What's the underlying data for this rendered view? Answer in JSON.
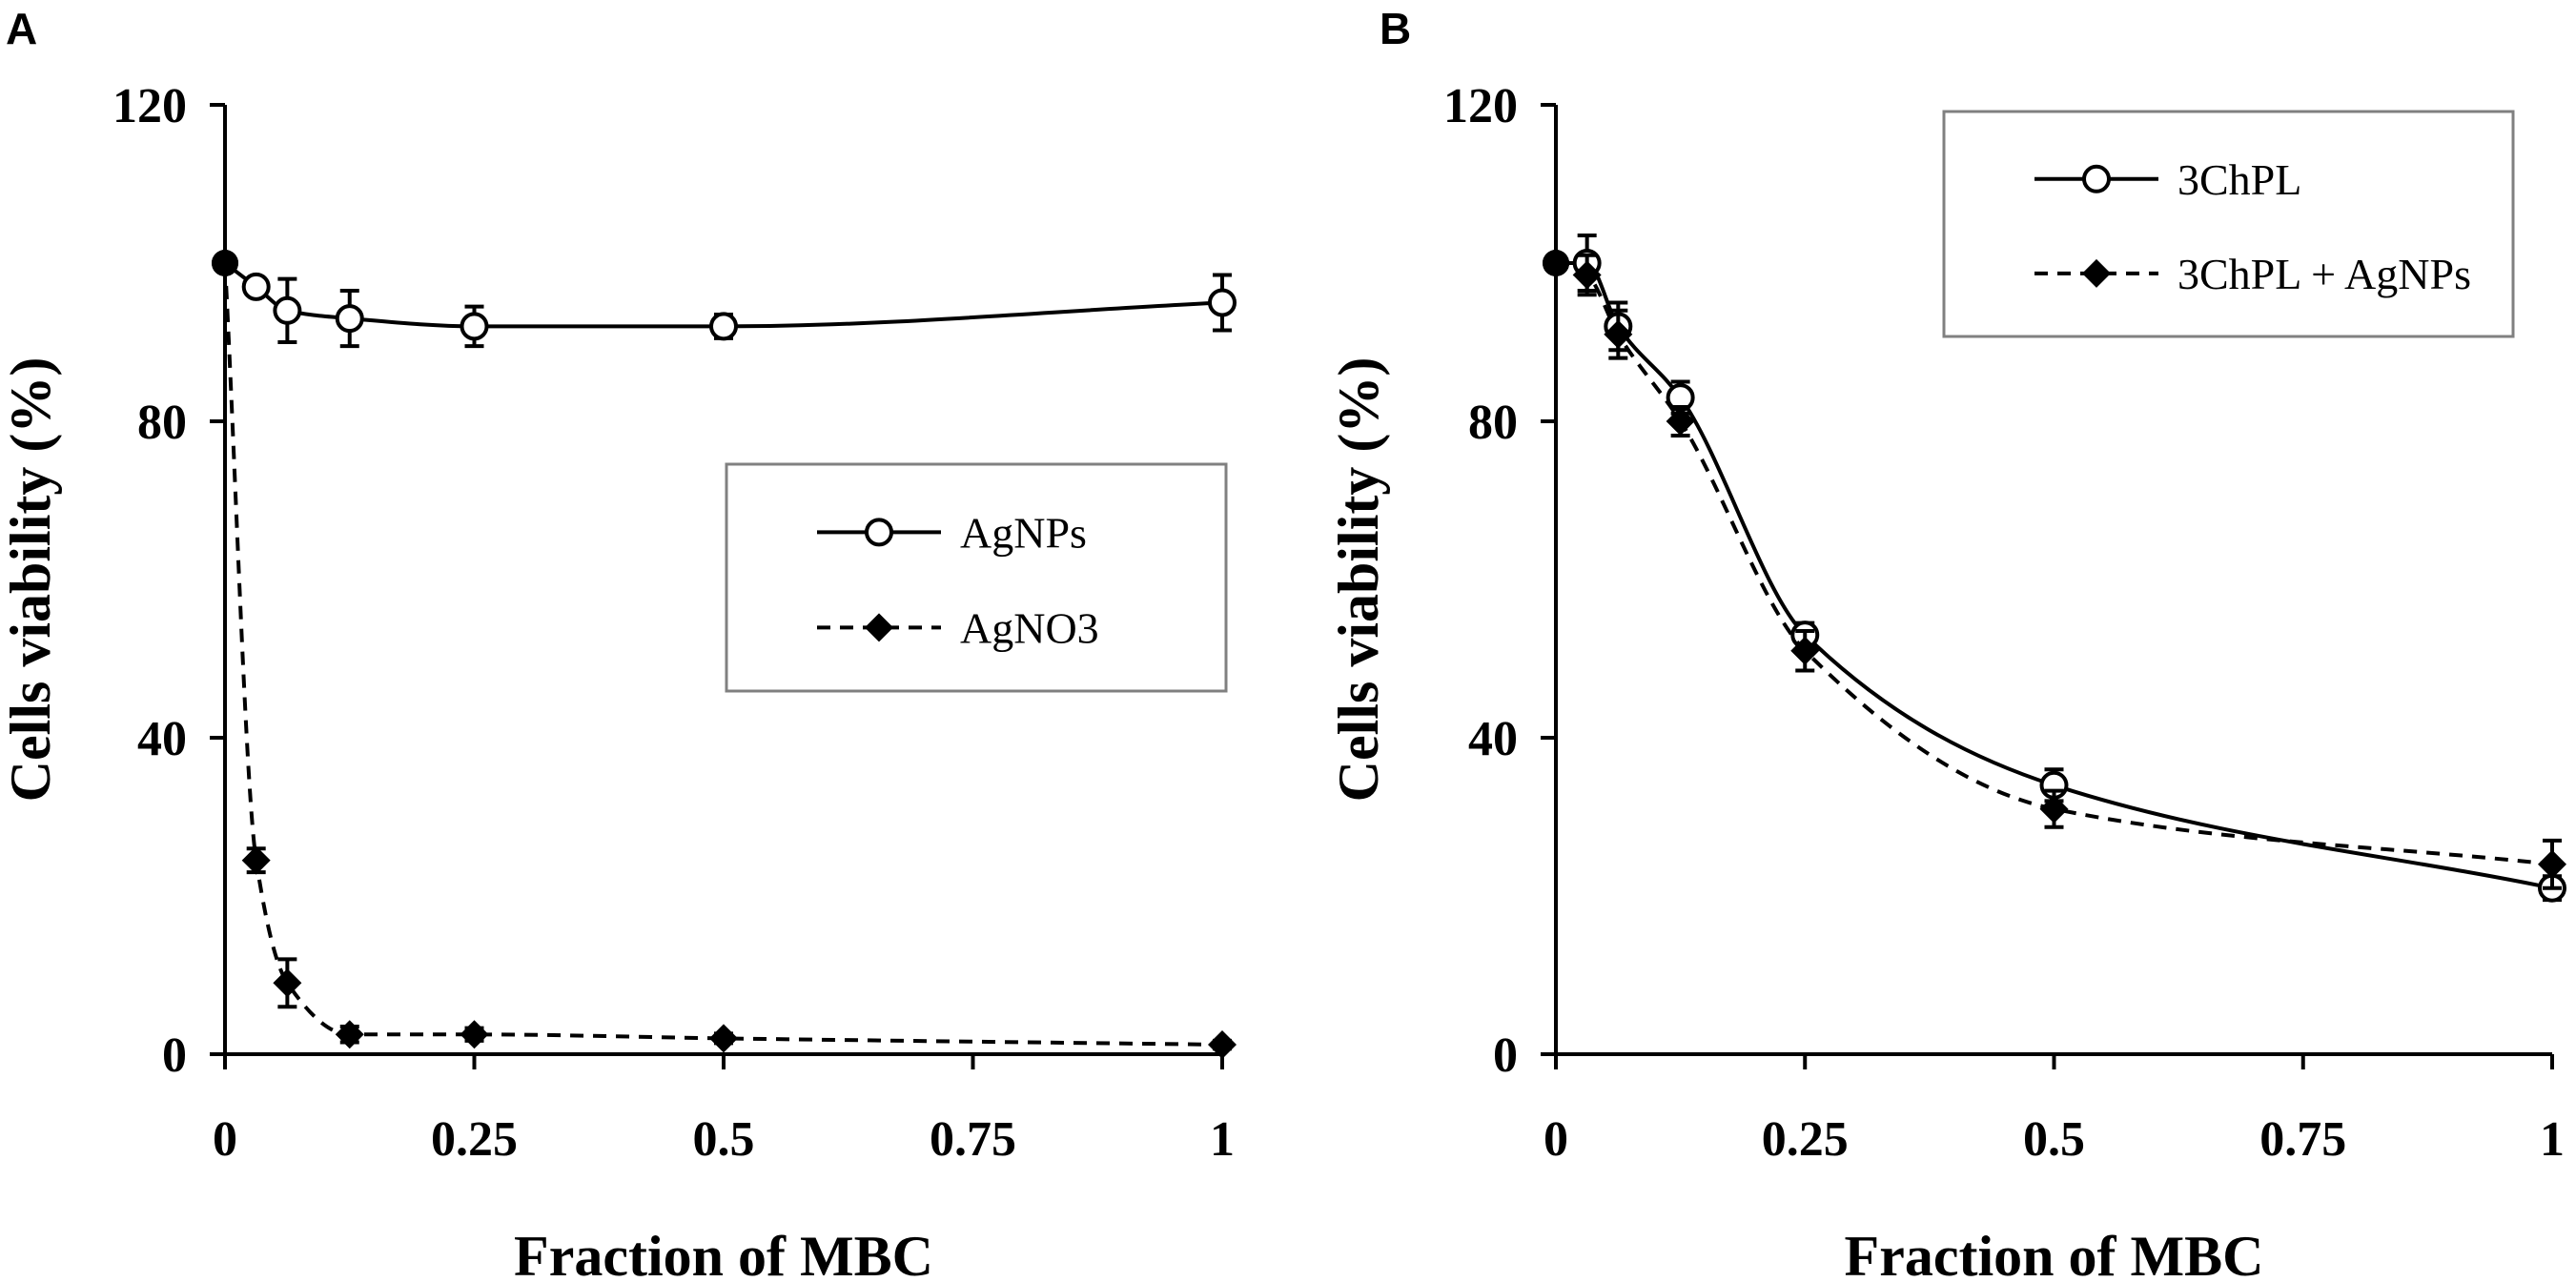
{
  "figure": {
    "panels": [
      {
        "letter": "A"
      },
      {
        "letter": "B"
      }
    ]
  },
  "chart_data": [
    {
      "type": "line",
      "panel": "A",
      "title": "",
      "xlabel": "Fraction of MBC",
      "ylabel": "Cells viability (%)",
      "xlim": [
        0,
        1
      ],
      "ylim": [
        0,
        120
      ],
      "xticks": [
        0,
        0.25,
        0.5,
        0.75,
        1
      ],
      "xtick_labels": [
        "0",
        "0.25",
        "0.5",
        "0.75",
        "1"
      ],
      "yticks": [
        0,
        40,
        80,
        120
      ],
      "ytick_labels": [
        "0",
        "40",
        "80",
        "120"
      ],
      "grid": false,
      "legend_position": "middle-right",
      "series": [
        {
          "name": "AgNPs",
          "marker": "open-circle",
          "line": "solid",
          "x": [
            0,
            0.03125,
            0.0625,
            0.125,
            0.25,
            0.5,
            1
          ],
          "y": [
            100,
            97,
            94,
            93,
            92,
            92,
            95
          ],
          "err": [
            0,
            1,
            4,
            3.5,
            2.5,
            1.5,
            3.5
          ]
        },
        {
          "name": "AgNO3",
          "marker": "filled-diamond",
          "line": "dashed",
          "x": [
            0,
            0.03125,
            0.0625,
            0.125,
            0.25,
            0.5,
            1
          ],
          "y": [
            100,
            24.5,
            9,
            2.5,
            2.5,
            2,
            1.2
          ],
          "err": [
            0,
            1.5,
            3,
            1,
            0.8,
            0.6,
            0.5
          ]
        }
      ]
    },
    {
      "type": "line",
      "panel": "B",
      "title": "",
      "xlabel": "Fraction of MBC",
      "ylabel": "Cells viability (%)",
      "xlim": [
        0,
        1
      ],
      "ylim": [
        0,
        120
      ],
      "xticks": [
        0,
        0.25,
        0.5,
        0.75,
        1
      ],
      "xtick_labels": [
        "0",
        "0.25",
        "0.5",
        "0.75",
        "1"
      ],
      "yticks": [
        0,
        40,
        80,
        120
      ],
      "ytick_labels": [
        "0",
        "40",
        "80",
        "120"
      ],
      "grid": false,
      "legend_position": "top-right",
      "series": [
        {
          "name": "3ChPL",
          "marker": "open-circle",
          "line": "solid",
          "x": [
            0,
            0.03125,
            0.0625,
            0.125,
            0.25,
            0.5,
            1
          ],
          "y": [
            100,
            100,
            92,
            83,
            53,
            34,
            21
          ],
          "err": [
            0,
            3.5,
            3,
            2,
            1.5,
            2,
            1.5
          ]
        },
        {
          "name": "3ChPL + AgNPs",
          "marker": "filled-diamond",
          "line": "dashed",
          "x": [
            0,
            0.03125,
            0.0625,
            0.125,
            0.25,
            0.5,
            1
          ],
          "y": [
            100,
            98.5,
            91,
            80,
            51,
            31,
            24
          ],
          "err": [
            0,
            2.5,
            3,
            1.8,
            2.5,
            2.3,
            3
          ]
        }
      ]
    }
  ],
  "colors": {
    "line": "#000000",
    "open_marker_fill": "#ffffff",
    "legend_border": "#808080",
    "background": "#ffffff"
  }
}
